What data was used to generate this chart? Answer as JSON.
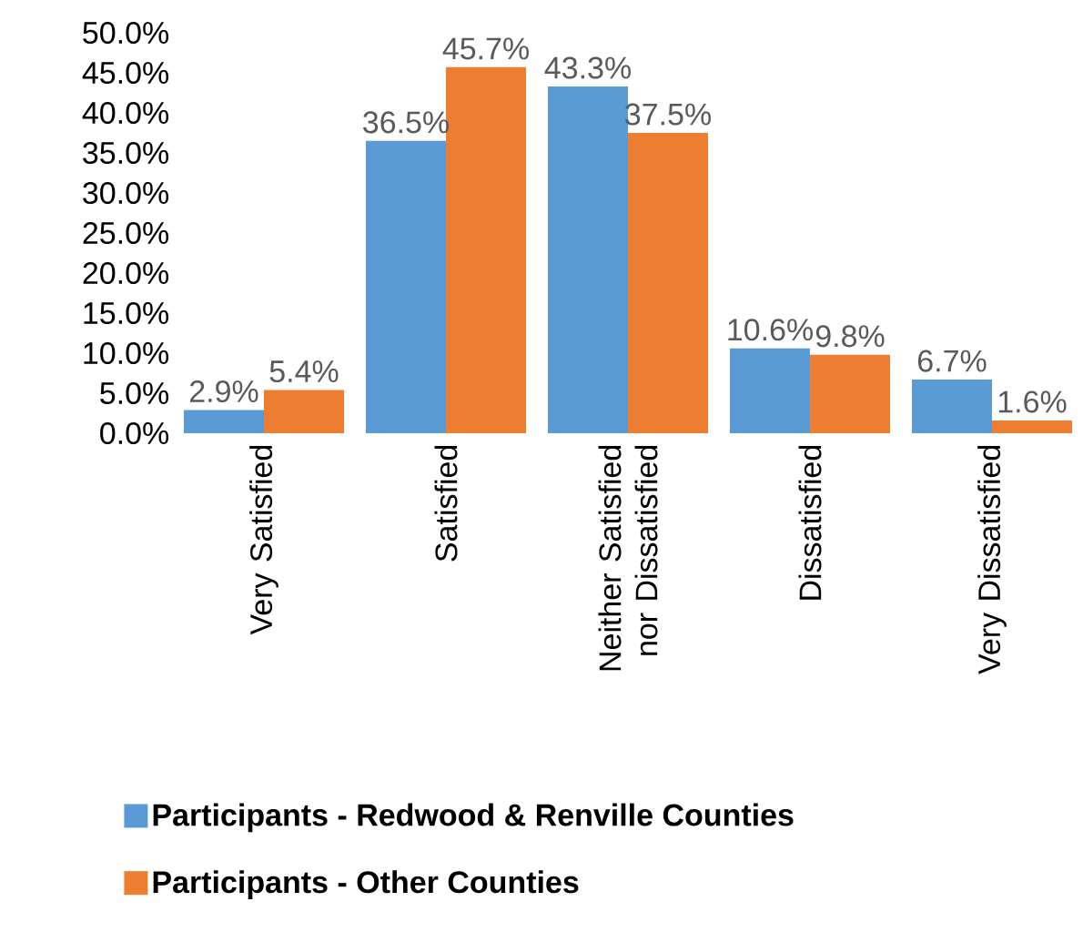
{
  "chart_data": {
    "type": "bar",
    "categories": [
      "Very Satisfied",
      "Satisfied",
      "Neither Satisfied nor Dissatisfied",
      "Dissatisfied",
      "Very Dissatisfied"
    ],
    "series": [
      {
        "name": "Participants - Redwood & Renville Counties",
        "color": "#5b9bd5",
        "values": [
          2.9,
          36.5,
          43.3,
          10.6,
          6.7
        ],
        "value_labels": [
          "2.9%",
          "36.5%",
          "43.3%",
          "10.6%",
          "6.7%"
        ]
      },
      {
        "name": "Participants - Other Counties",
        "color": "#ed7d31",
        "values": [
          5.4,
          45.7,
          37.5,
          9.8,
          1.6
        ],
        "value_labels": [
          "5.4%",
          "45.7%",
          "37.5%",
          "9.8%",
          "1.6%"
        ]
      }
    ],
    "ylim": [
      0,
      50
    ],
    "yticks": [
      {
        "value": 0,
        "label": "0.0%"
      },
      {
        "value": 5,
        "label": "5.0%"
      },
      {
        "value": 10,
        "label": "10.0%"
      },
      {
        "value": 15,
        "label": "15.0%"
      },
      {
        "value": 20,
        "label": "20.0%"
      },
      {
        "value": 25,
        "label": "25.0%"
      },
      {
        "value": 30,
        "label": "30.0%"
      },
      {
        "value": 35,
        "label": "35.0%"
      },
      {
        "value": 40,
        "label": "40.0%"
      },
      {
        "value": 45,
        "label": "45.0%"
      },
      {
        "value": 50,
        "label": "50.0%"
      }
    ],
    "legend": "bottom"
  }
}
